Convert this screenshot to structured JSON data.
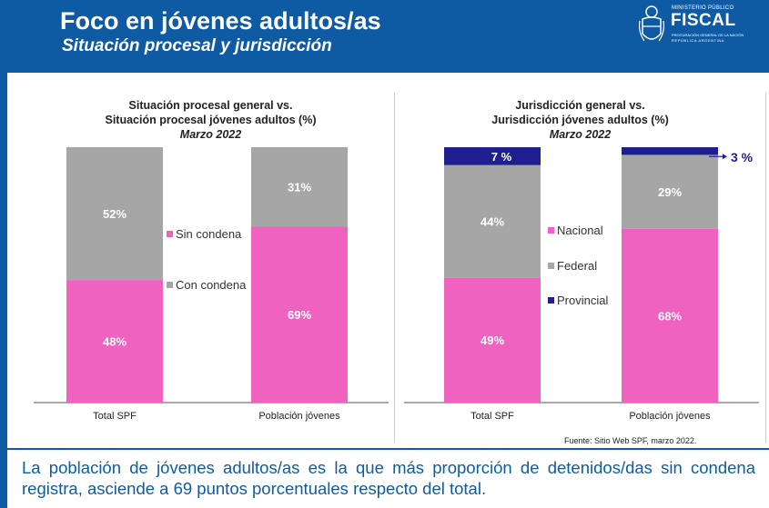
{
  "header": {
    "title": "Foco en jóvenes adultos/as",
    "subtitle": "Situación procesal y jurisdicción",
    "logo_line1": "MINISTERIO PÚBLICO",
    "logo_name": "FISCAL",
    "logo_line3": "PROCURACIÓN GENERAL DE LA NACIÓN",
    "logo_line4": "REPÚBLICA ARGENTINA"
  },
  "colors": {
    "header": "#0f5ba3",
    "pink": "#f062c0",
    "gray": "#a6a6a6",
    "navy": "#1f1f8f"
  },
  "chart_data": [
    {
      "type": "bar",
      "stacked": true,
      "title_line1": "Situación procesal general  vs.",
      "title_line2": "Situación procesal jóvenes adultos (%)",
      "date": "Marzo 2022",
      "categories": [
        "Total SPF",
        "Población jóvenes"
      ],
      "series": [
        {
          "name": "Sin condena",
          "color": "#f062c0",
          "values": [
            48,
            69
          ],
          "labels": [
            "48%",
            "69%"
          ]
        },
        {
          "name": "Con condena",
          "color": "#a6a6a6",
          "values": [
            52,
            31
          ],
          "labels": [
            "52%",
            "31%"
          ]
        }
      ],
      "ylim": [
        0,
        100
      ],
      "legend_position": "between bars"
    },
    {
      "type": "bar",
      "stacked": true,
      "title_line1": "Jurisdicción general vs.",
      "title_line2": "Jurisdicción jóvenes adultos (%)",
      "date": "Marzo 2022",
      "categories": [
        "Total SPF",
        "Población jóvenes"
      ],
      "series": [
        {
          "name": "Nacional",
          "color": "#f062c0",
          "values": [
            49,
            68
          ],
          "labels": [
            "49%",
            "68%"
          ]
        },
        {
          "name": "Federal",
          "color": "#a6a6a6",
          "values": [
            44,
            29
          ],
          "labels": [
            "44%",
            "29%"
          ]
        },
        {
          "name": "Provincial",
          "color": "#1f1f8f",
          "values": [
            7,
            3
          ],
          "labels": [
            "7  %",
            "3  %"
          ]
        }
      ],
      "ylim": [
        0,
        100
      ],
      "legend_position": "between bars"
    }
  ],
  "source": "Fuente: Sitio Web SPF, marzo 2022.",
  "bottom_text": "La población de jóvenes adultos/as es la que más proporción de detenidos/das sin condena registra, asciende a 69 puntos porcentuales respecto del total."
}
